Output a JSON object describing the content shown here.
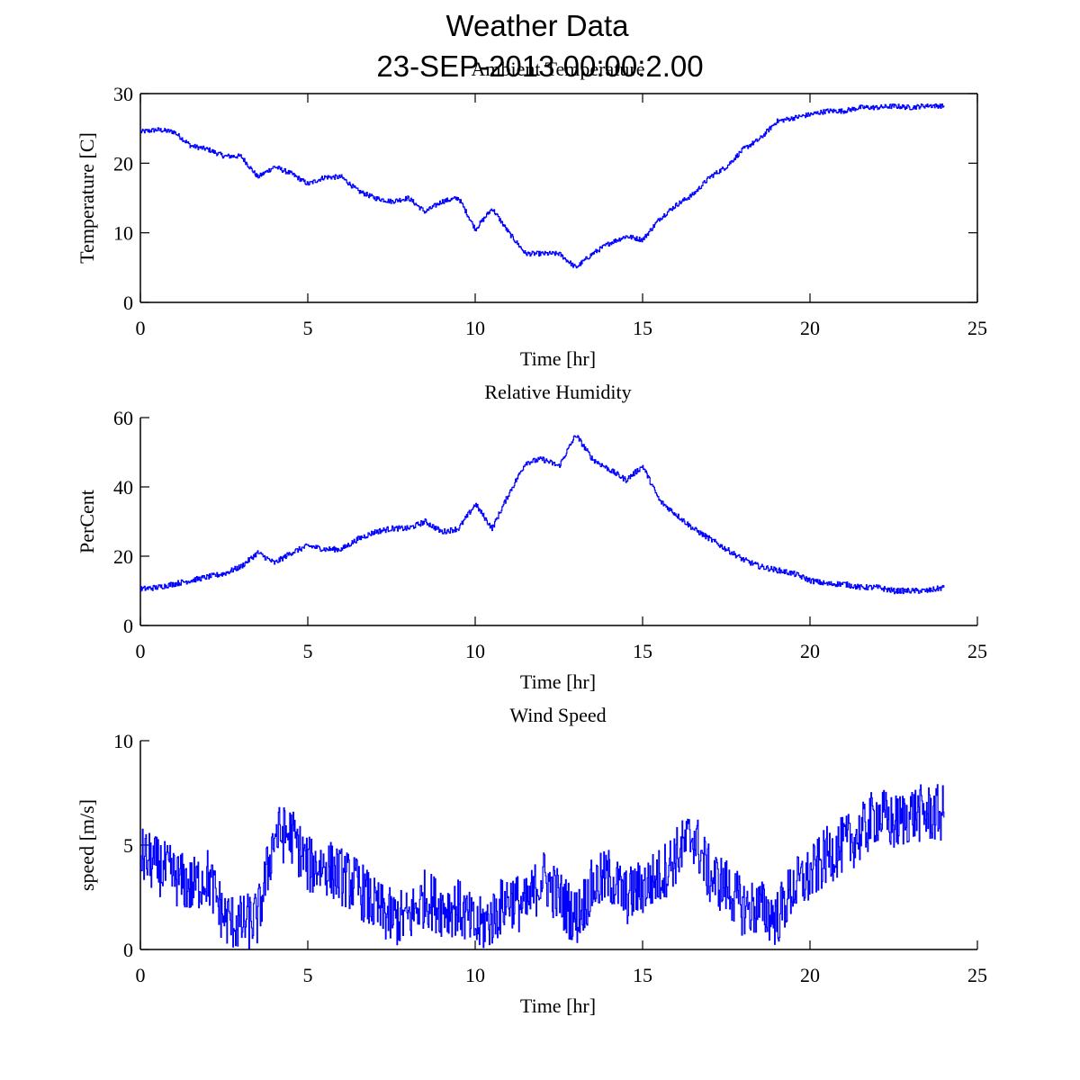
{
  "figure": {
    "title": "Weather Data",
    "subtitle": "23-SEP-2013 00:00:2.00",
    "line_color": "#0000ff"
  },
  "chart_data": [
    {
      "type": "line",
      "title": "Ambient Temperature",
      "xlabel": "Time [hr]",
      "ylabel": "Temperature [C]",
      "xlim": [
        0,
        25
      ],
      "ylim": [
        0,
        30
      ],
      "xticks": [
        0,
        5,
        10,
        15,
        20,
        25
      ],
      "yticks": [
        0,
        10,
        20,
        30
      ],
      "xtick_labels": [
        "0",
        "5",
        "10",
        "15",
        "20",
        "25"
      ],
      "ytick_labels": [
        "0",
        "10",
        "20",
        "30"
      ],
      "box": true,
      "grid": false,
      "noise": 0.35,
      "series": [
        {
          "name": "Temperature",
          "x": [
            0,
            0.5,
            1,
            1.5,
            2,
            2.5,
            3,
            3.5,
            4,
            4.5,
            5,
            5.5,
            6,
            6.5,
            7,
            7.5,
            8,
            8.5,
            9,
            9.5,
            10,
            10.5,
            11,
            11.5,
            12,
            12.5,
            13,
            13.5,
            14,
            14.5,
            15,
            15.5,
            16,
            16.5,
            17,
            17.5,
            18,
            18.5,
            19,
            19.5,
            20,
            20.5,
            21,
            21.5,
            22,
            22.5,
            23,
            23.5,
            24
          ],
          "values": [
            24.5,
            24.8,
            24.5,
            22.5,
            22,
            21,
            21,
            18,
            19.5,
            18.5,
            17,
            18,
            18,
            16,
            15,
            14.5,
            15,
            13,
            14.5,
            15,
            10.5,
            13.5,
            10,
            7,
            7,
            7,
            5,
            7,
            8.5,
            9.5,
            9,
            12,
            14,
            15.5,
            18,
            19.5,
            22,
            23.5,
            26,
            26.5,
            27,
            27.5,
            27.5,
            28,
            28,
            28.2,
            28,
            28.3,
            28.2
          ]
        }
      ]
    },
    {
      "type": "line",
      "title": "Relative Humidity",
      "xlabel": "Time [hr]",
      "ylabel": "PerCent",
      "xlim": [
        0,
        25
      ],
      "ylim": [
        0,
        60
      ],
      "xticks": [
        0,
        5,
        10,
        15,
        20,
        25
      ],
      "yticks": [
        0,
        20,
        40,
        60
      ],
      "xtick_labels": [
        "0",
        "5",
        "10",
        "15",
        "20",
        "25"
      ],
      "ytick_labels": [
        "0",
        "20",
        "40",
        "60"
      ],
      "box": false,
      "grid": false,
      "noise": 0.8,
      "series": [
        {
          "name": "Humidity",
          "x": [
            0,
            0.5,
            1,
            1.5,
            2,
            2.5,
            3,
            3.5,
            4,
            4.5,
            5,
            5.5,
            6,
            6.5,
            7,
            7.5,
            8,
            8.5,
            9,
            9.5,
            10,
            10.5,
            11,
            11.5,
            12,
            12.5,
            13,
            13.5,
            14,
            14.5,
            15,
            15.5,
            16,
            16.5,
            17,
            17.5,
            18,
            18.5,
            19,
            19.5,
            20,
            20.5,
            21,
            21.5,
            22,
            22.5,
            23,
            23.5,
            24
          ],
          "values": [
            10.5,
            11,
            12,
            13,
            14,
            15,
            17,
            21,
            18,
            21,
            23,
            22,
            22,
            25,
            27,
            28,
            28,
            30,
            27,
            28,
            35,
            28,
            38,
            47,
            48,
            46,
            55,
            48,
            45,
            42,
            46,
            36,
            32,
            28,
            25,
            22,
            19,
            17,
            16,
            15,
            13,
            12,
            12,
            11,
            11,
            10,
            10,
            10,
            11
          ]
        }
      ]
    },
    {
      "type": "line",
      "title": "Wind Speed",
      "xlabel": "Time [hr]",
      "ylabel": "speed [m/s]",
      "xlim": [
        0,
        25
      ],
      "ylim": [
        0,
        10
      ],
      "xticks": [
        0,
        5,
        10,
        15,
        20,
        25
      ],
      "yticks": [
        0,
        5,
        10
      ],
      "xtick_labels": [
        "0",
        "5",
        "10",
        "15",
        "20",
        "25"
      ],
      "ytick_labels": [
        "0",
        "5",
        "10"
      ],
      "box": false,
      "grid": false,
      "noise": 1.4,
      "series": [
        {
          "name": "Wind Speed",
          "x": [
            0,
            0.5,
            1,
            1.5,
            2,
            2.5,
            3,
            3.5,
            4,
            4.5,
            5,
            5.5,
            6,
            6.5,
            7,
            7.5,
            8,
            8.5,
            9,
            9.5,
            10,
            10.5,
            11,
            11.5,
            12,
            12.5,
            13,
            13.5,
            14,
            14.5,
            15,
            15.5,
            16,
            16.5,
            17,
            17.5,
            18,
            18.5,
            19,
            19.5,
            20,
            20.5,
            21,
            21.5,
            22,
            22.5,
            23,
            23.5,
            24
          ],
          "values": [
            4.5,
            4,
            3.5,
            3,
            3.5,
            1.5,
            1.2,
            1.5,
            5.5,
            5.5,
            4,
            4,
            3.5,
            3,
            2,
            1.5,
            1.5,
            2.5,
            2,
            2,
            1,
            1.5,
            2.5,
            2,
            3.5,
            2.5,
            1.5,
            3,
            3.5,
            2.5,
            3,
            3.5,
            4.5,
            5.5,
            3.5,
            3,
            2,
            2,
            1.5,
            3,
            3.5,
            4.5,
            5,
            5.5,
            6.5,
            6,
            6.5,
            6.5,
            6.5
          ]
        }
      ]
    }
  ]
}
